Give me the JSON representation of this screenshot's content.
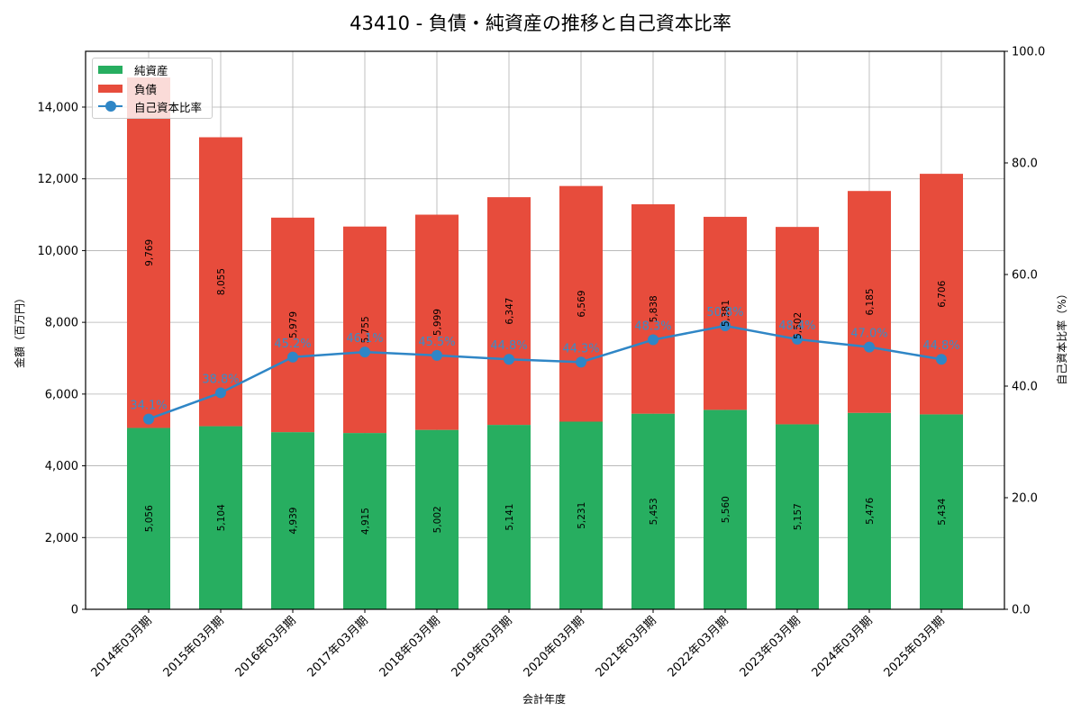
{
  "title": "43410 - 負債・純資産の推移と自己資本比率",
  "legend": {
    "net_assets": "純資産",
    "liabilities": "負債",
    "equity_ratio": "自己資本比率"
  },
  "axes": {
    "xlabel": "会計年度",
    "ylabel_left": "金額（百万円）",
    "ylabel_right": "自己資本比率（%）",
    "left_ticks": [
      "0",
      "2,000",
      "4,000",
      "6,000",
      "8,000",
      "10,000",
      "12,000",
      "14,000"
    ],
    "right_ticks": [
      "0.0",
      "20.0",
      "40.0",
      "60.0",
      "80.0",
      "100.0"
    ]
  },
  "colors": {
    "net_assets": "#27ae60",
    "liabilities": "#e74c3c",
    "equity_ratio": "#2f86c6",
    "grid": "#b0b0b0"
  },
  "chart_data": {
    "type": "bar",
    "stacked": true,
    "title": "43410 - 負債・純資産の推移と自己資本比率",
    "xlabel": "会計年度",
    "ylabel": "金額（百万円）",
    "ylabel_right": "自己資本比率（%）",
    "ylim": [
      0,
      15555
    ],
    "ylim_right": [
      0,
      100
    ],
    "grid": true,
    "legend_position": "upper left",
    "categories": [
      "2014年03月期",
      "2015年03月期",
      "2016年03月期",
      "2017年03月期",
      "2018年03月期",
      "2019年03月期",
      "2020年03月期",
      "2021年03月期",
      "2022年03月期",
      "2023年03月期",
      "2024年03月期",
      "2025年03月期"
    ],
    "series": [
      {
        "name": "純資産",
        "type": "bar",
        "axis": "left",
        "values": [
          5056,
          5104,
          4939,
          4915,
          5002,
          5141,
          5231,
          5453,
          5560,
          5157,
          5476,
          5434
        ],
        "labels": [
          "5,056",
          "5,104",
          "4,939",
          "4,915",
          "5,002",
          "5,141",
          "5,231",
          "5,453",
          "5,560",
          "5,157",
          "5,476",
          "5,434"
        ]
      },
      {
        "name": "負債",
        "type": "bar",
        "axis": "left",
        "values": [
          9769,
          8055,
          5979,
          5755,
          5999,
          6347,
          6569,
          5838,
          5381,
          5502,
          6185,
          6706
        ],
        "labels": [
          "9,769",
          "8,055",
          "5,979",
          "5,755",
          "5,999",
          "6,347",
          "6,569",
          "5,838",
          "5,381",
          "5,502",
          "6,185",
          "6,706"
        ]
      },
      {
        "name": "自己資本比率",
        "type": "line",
        "axis": "right",
        "values": [
          34.1,
          38.8,
          45.2,
          46.1,
          45.5,
          44.8,
          44.3,
          48.3,
          50.8,
          48.4,
          47.0,
          44.8
        ],
        "labels": [
          "34.1%",
          "38.8%",
          "45.2%",
          "46.1%",
          "45.5%",
          "44.8%",
          "44.3%",
          "48.3%",
          "50.8%",
          "48.4%",
          "47.0%",
          "44.8%"
        ]
      }
    ]
  }
}
